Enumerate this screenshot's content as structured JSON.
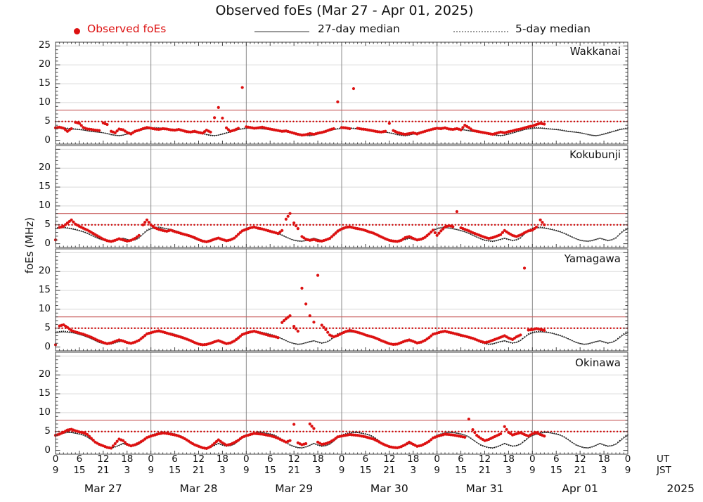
{
  "title": "Observed foEs (Mar 27 - Apr 01, 2025)",
  "legend": {
    "observed": "Observed foEs",
    "median27": "27-day median",
    "median5": "5-day median"
  },
  "ylabel": "foEs (MHz)",
  "colors": {
    "observed": "#dd1111",
    "threshold_solid": "#c75b5b",
    "threshold_dotted": "#cc0000",
    "median_line": "#555555",
    "median_dots": "#151515",
    "grid": "#d9d9d9",
    "dayline": "#8a8a8a",
    "frame": "#444444"
  },
  "chart_data": {
    "type": "scatter",
    "title": "Observed foEs (Mar 27 - Apr 01, 2025)",
    "xlabel_units": {
      "top": "UT",
      "bottom": "JST"
    },
    "ylabel": "foEs (MHz)",
    "ylim": [
      -1,
      26
    ],
    "yticks": [
      0,
      5,
      10,
      15,
      20,
      25
    ],
    "hours_total": 144,
    "observed_end_hour": 123,
    "axis": {
      "ut_row": [
        "0",
        "6",
        "12",
        "18"
      ],
      "jst_row": [
        "9",
        "15",
        "21",
        "3"
      ],
      "days": [
        "Mar 27",
        "Mar 28",
        "Mar 29",
        "Mar 30",
        "Mar 31",
        "Apr 01"
      ],
      "year": "2025"
    },
    "thresholds": {
      "solid_mhz": 8,
      "dotted_mhz": 5
    },
    "panels": [
      {
        "station": "Wakkanai",
        "observed": [
          [
            3.3,
            3.5,
            3.2,
            2.4,
            3.1,
            4.8,
            4.5,
            3.4,
            3.0,
            2.9,
            2.7,
            2.6,
            4.6,
            4.2,
            2.4,
            2.0,
            3.0,
            2.8,
            2.1,
            1.7,
            2.4,
            2.7,
            3.1,
            3.4
          ],
          [
            3.2,
            3.0,
            2.9,
            3.1,
            3.0,
            2.8,
            2.7,
            2.9,
            2.6,
            2.3,
            2.2,
            2.4,
            2.1,
            1.9,
            2.7,
            2.2,
            6.0,
            8.7,
            5.9,
            3.3,
            2.4,
            2.7,
            3.2,
            14.0
          ],
          [
            3.6,
            3.4,
            3.2,
            3.3,
            3.5,
            3.2,
            3.0,
            2.8,
            2.6,
            2.4,
            2.5,
            2.2,
            1.9,
            1.6,
            1.4,
            1.5,
            1.8,
            1.6,
            1.9,
            2.1,
            2.4,
            2.8,
            3.1,
            10.2
          ],
          [
            3.4,
            3.3,
            3.1,
            13.7,
            3.2,
            3.0,
            2.9,
            2.7,
            2.5,
            2.3,
            2.2,
            2.4,
            4.5,
            2.6,
            2.1,
            1.8,
            1.6,
            1.8,
            2.0,
            1.7,
            2.1,
            2.4,
            2.7,
            3.0
          ],
          [
            3.2,
            3.1,
            3.3,
            3.0,
            2.9,
            3.1,
            2.8,
            4.0,
            3.4,
            2.6,
            2.4,
            2.2,
            2.0,
            1.8,
            1.6,
            1.9,
            2.2,
            2.0,
            2.3,
            2.5,
            2.8,
            3.0,
            3.3,
            3.6
          ],
          [
            3.8,
            4.2,
            4.5,
            4.3
          ]
        ],
        "median27_day": [
          3.1,
          3.2,
          3.2,
          3.1,
          3.0,
          2.9,
          2.8,
          2.7,
          2.5,
          2.3,
          2.2,
          2.1,
          2.0,
          1.8,
          1.6,
          1.4,
          1.3,
          1.4,
          1.6,
          1.9,
          2.2,
          2.5,
          2.8,
          3.0
        ],
        "median5_day": [
          3.3,
          3.4,
          3.3,
          3.2,
          3.1,
          3.0,
          2.9,
          2.8,
          2.6,
          2.4,
          2.3,
          2.2,
          2.0,
          1.8,
          1.5,
          1.3,
          1.2,
          1.4,
          1.7,
          2.0,
          2.3,
          2.6,
          2.9,
          3.1
        ]
      },
      {
        "station": "Kokubunji",
        "observed": [
          [
            1.0,
            4.3,
            4.6,
            5.5,
            6.3,
            5.2,
            4.6,
            4.1,
            3.6,
            3.0,
            2.4,
            1.8,
            1.2,
            0.8,
            0.6,
            0.9,
            1.3,
            1.0,
            0.7,
            0.9,
            1.4,
            2.2,
            5.0,
            6.3
          ],
          [
            5.0,
            4.2,
            3.8,
            3.5,
            3.3,
            3.6,
            3.2,
            2.9,
            2.6,
            2.3,
            2.0,
            1.6,
            1.1,
            0.7,
            0.5,
            0.8,
            1.2,
            1.5,
            1.1,
            0.8,
            1.0,
            1.5,
            2.5,
            3.4
          ],
          [
            3.8,
            4.2,
            4.4,
            4.1,
            3.9,
            3.6,
            3.3,
            3.0,
            2.7,
            3.5,
            6.5,
            8.0,
            5.5,
            4.0,
            1.9,
            1.2,
            0.9,
            1.1,
            0.8,
            0.7,
            1.0,
            1.4,
            2.3,
            3.3
          ],
          [
            3.9,
            4.3,
            4.5,
            4.2,
            4.0,
            3.8,
            3.5,
            3.1,
            2.8,
            2.3,
            1.8,
            1.3,
            0.9,
            0.7,
            0.6,
            0.9,
            1.6,
            1.9,
            1.4,
            1.0,
            1.2,
            1.7,
            2.6,
            3.6
          ],
          [
            2.2,
            3.4,
            4.4,
            4.8,
            4.5,
            8.5,
            4.2,
            3.8,
            3.4,
            2.9,
            2.5,
            2.1,
            1.7,
            1.4,
            1.6,
            2.0,
            2.4,
            3.5,
            2.8,
            2.2,
            1.9,
            2.3,
            2.9,
            3.4
          ],
          [
            3.6,
            4.4,
            6.3,
            5.0
          ]
        ],
        "median27_day": [
          3.9,
          4.1,
          4.2,
          4.1,
          3.9,
          3.7,
          3.4,
          3.1,
          2.7,
          2.2,
          1.7,
          1.3,
          1.0,
          0.8,
          0.7,
          0.9,
          1.2,
          1.5,
          1.2,
          0.9,
          1.1,
          1.6,
          2.5,
          3.4
        ],
        "median5_day": [
          4.1,
          4.3,
          4.4,
          4.2,
          4.0,
          3.8,
          3.5,
          3.2,
          2.8,
          2.3,
          1.8,
          1.3,
          0.9,
          0.7,
          0.6,
          0.8,
          1.1,
          1.4,
          1.1,
          0.8,
          1.0,
          1.5,
          2.6,
          3.6
        ]
      },
      {
        "station": "Yamagawa",
        "observed": [
          [
            0.6,
            5.6,
            5.9,
            5.2,
            4.4,
            4.0,
            3.7,
            3.4,
            3.0,
            2.6,
            2.1,
            1.6,
            1.2,
            0.9,
            1.1,
            1.5,
            1.9,
            1.6,
            1.2,
            1.0,
            1.3,
            1.8,
            2.6,
            3.5
          ],
          [
            3.8,
            4.1,
            4.3,
            4.0,
            3.7,
            3.4,
            3.1,
            2.8,
            2.5,
            2.1,
            1.7,
            1.2,
            0.8,
            0.6,
            0.7,
            1.0,
            1.4,
            1.7,
            1.3,
            0.9,
            1.1,
            1.6,
            2.4,
            3.3
          ],
          [
            3.7,
            4.0,
            4.2,
            3.9,
            3.6,
            3.3,
            3.0,
            2.8,
            2.5,
            6.5,
            7.5,
            8.3,
            5.5,
            4.2,
            15.6,
            11.4,
            8.3,
            6.6,
            19.0,
            5.8,
            4.6,
            3.2,
            2.7,
            3.1
          ],
          [
            3.6,
            4.1,
            4.4,
            4.2,
            3.9,
            3.6,
            3.2,
            2.9,
            2.6,
            2.2,
            1.7,
            1.3,
            0.9,
            0.7,
            0.8,
            1.2,
            1.6,
            1.9,
            1.5,
            1.1,
            1.3,
            1.8,
            2.5,
            3.4
          ],
          [
            3.7,
            4.0,
            4.2,
            3.9,
            3.7,
            3.4,
            3.1,
            2.9,
            2.6,
            2.3,
            1.9,
            1.5,
            1.2,
            1.4,
            1.8,
            2.2,
            2.6,
            3.0,
            2.4,
            2.0,
            2.7,
            3.2,
            20.9,
            4.5
          ],
          [
            4.6,
            4.9,
            4.7,
            4.4
          ]
        ],
        "median27_day": [
          3.7,
          3.9,
          4.0,
          3.9,
          3.8,
          3.6,
          3.3,
          3.0,
          2.6,
          2.2,
          1.7,
          1.3,
          1.0,
          0.8,
          0.9,
          1.2,
          1.5,
          1.7,
          1.4,
          1.1,
          1.2,
          1.7,
          2.5,
          3.3
        ],
        "median5_day": [
          3.9,
          4.1,
          4.2,
          4.1,
          3.9,
          3.7,
          3.4,
          3.1,
          2.7,
          2.2,
          1.7,
          1.2,
          0.9,
          0.7,
          0.8,
          1.1,
          1.4,
          1.6,
          1.3,
          1.0,
          1.3,
          1.8,
          2.7,
          3.5
        ]
      },
      {
        "station": "Okinawa",
        "observed": [
          [
            4.0,
            4.3,
            4.8,
            5.4,
            5.6,
            5.2,
            4.9,
            4.7,
            4.2,
            3.2,
            2.2,
            1.6,
            1.2,
            0.8,
            0.6,
            1.8,
            3.0,
            2.6,
            1.6,
            1.2,
            1.5,
            2.0,
            2.6,
            3.4
          ],
          [
            3.8,
            4.1,
            4.4,
            4.6,
            4.5,
            4.3,
            4.1,
            3.8,
            3.4,
            2.8,
            2.1,
            1.5,
            1.1,
            0.7,
            0.5,
            1.0,
            1.9,
            2.8,
            2.0,
            1.4,
            1.6,
            2.1,
            2.7,
            3.5
          ],
          [
            3.9,
            4.2,
            4.5,
            4.4,
            4.3,
            4.1,
            3.9,
            3.6,
            3.2,
            2.7,
            2.2,
            2.6,
            6.9,
            2.0,
            1.5,
            1.8,
            7.0,
            5.8,
            2.2,
            1.6,
            1.8,
            2.2,
            2.8,
            3.6
          ],
          [
            3.8,
            4.0,
            4.2,
            4.1,
            4.0,
            3.8,
            3.6,
            3.3,
            3.0,
            2.5,
            1.9,
            1.4,
            1.0,
            0.8,
            0.7,
            1.0,
            1.5,
            2.2,
            1.6,
            1.1,
            1.3,
            1.8,
            2.4,
            3.3
          ],
          [
            3.7,
            4.0,
            4.3,
            4.2,
            4.1,
            3.9,
            3.7,
            3.5,
            8.3,
            5.5,
            4.0,
            3.2,
            2.6,
            2.9,
            3.4,
            3.9,
            4.4,
            6.3,
            4.8,
            4.1,
            4.4,
            4.7,
            4.2,
            3.8
          ],
          [
            4.4,
            4.7,
            4.2,
            3.8
          ]
        ],
        "median27_day": [
          3.9,
          4.2,
          4.5,
          4.7,
          4.7,
          4.5,
          4.3,
          4.0,
          3.5,
          2.8,
          2.1,
          1.5,
          1.1,
          0.8,
          0.7,
          1.0,
          1.4,
          1.9,
          1.5,
          1.2,
          1.2,
          1.6,
          2.4,
          3.3
        ],
        "median5_day": [
          4.1,
          4.4,
          4.7,
          4.9,
          4.8,
          4.6,
          4.4,
          4.1,
          3.6,
          2.9,
          2.1,
          1.4,
          1.0,
          0.7,
          0.6,
          0.9,
          1.3,
          1.8,
          1.4,
          1.1,
          1.3,
          1.7,
          2.6,
          3.5
        ]
      }
    ]
  }
}
